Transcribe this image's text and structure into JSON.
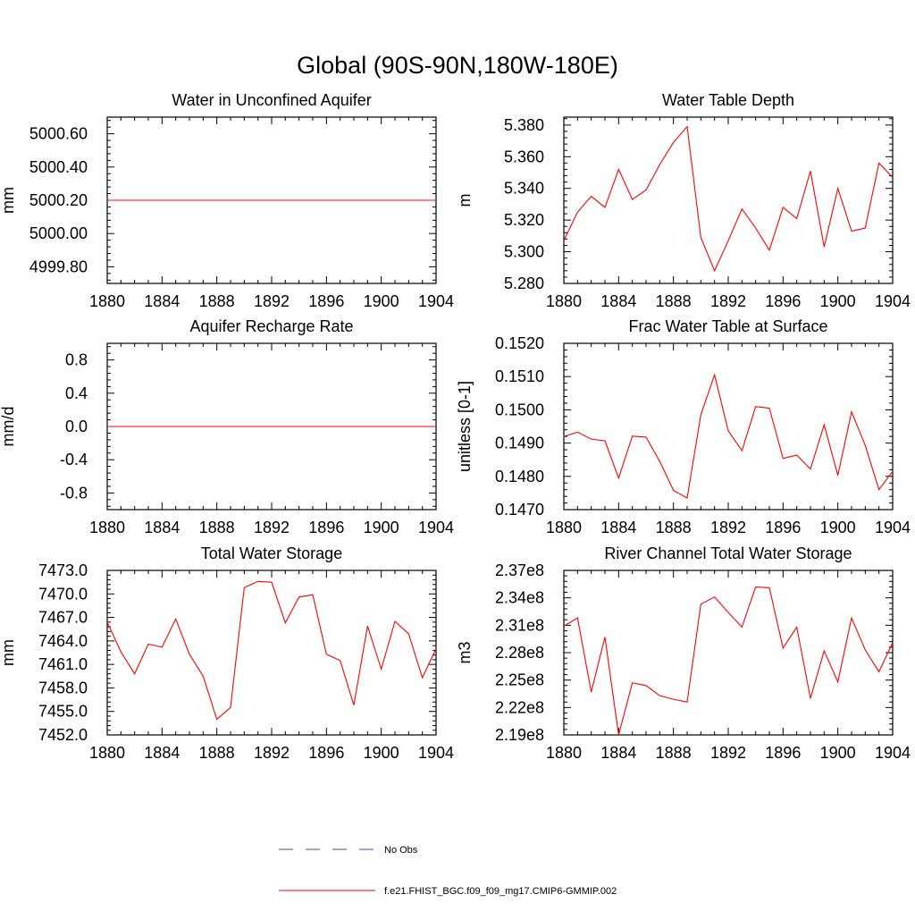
{
  "title": "Global (90S-90N,180W-180E)",
  "colors": {
    "series": "#ff0000",
    "obs": "#4a4aa8",
    "axis": "#000000"
  },
  "legend": {
    "entries": [
      {
        "label": "No Obs",
        "style": "dashed",
        "color": "#4a4aa8"
      },
      {
        "label": "f.e21.FHIST_BGC.f09_f09_mg17.CMIP6-GMMIP.002",
        "style": "solid",
        "color": "#ff0000"
      }
    ]
  },
  "chart_data": [
    {
      "type": "line",
      "title": "Water in Unconfined Aquifer",
      "ylabel": "mm",
      "xlabel": "",
      "xlim": [
        1880,
        1904
      ],
      "ylim": [
        4999.7,
        5000.7
      ],
      "xticks": [
        1880,
        1884,
        1888,
        1892,
        1896,
        1900,
        1904
      ],
      "xtick_labels": [
        "1880",
        "1884",
        "1888",
        "1892",
        "1896",
        "1900",
        "1904"
      ],
      "yticks": [
        4999.8,
        5000.0,
        5000.2,
        5000.4,
        5000.6
      ],
      "ytick_labels": [
        "4999.80",
        "5000.00",
        "5000.20",
        "5000.40",
        "5000.60"
      ],
      "series": [
        {
          "name": "f.e21.FHIST_BGC.f09_f09_mg17.CMIP6-GMMIP.002",
          "x": [
            1880,
            1881,
            1882,
            1883,
            1884,
            1885,
            1886,
            1887,
            1888,
            1889,
            1890,
            1891,
            1892,
            1893,
            1894,
            1895,
            1896,
            1897,
            1898,
            1899,
            1900,
            1901,
            1902,
            1903,
            1904
          ],
          "values": [
            5000.2,
            5000.2,
            5000.2,
            5000.2,
            5000.2,
            5000.2,
            5000.2,
            5000.2,
            5000.2,
            5000.2,
            5000.2,
            5000.2,
            5000.2,
            5000.2,
            5000.2,
            5000.2,
            5000.2,
            5000.2,
            5000.2,
            5000.2,
            5000.2,
            5000.2,
            5000.2,
            5000.2,
            5000.2
          ]
        }
      ]
    },
    {
      "type": "line",
      "title": "Water Table Depth",
      "ylabel": "m",
      "xlabel": "",
      "xlim": [
        1880,
        1904
      ],
      "ylim": [
        5.28,
        5.385
      ],
      "xticks": [
        1880,
        1884,
        1888,
        1892,
        1896,
        1900,
        1904
      ],
      "xtick_labels": [
        "1880",
        "1884",
        "1888",
        "1892",
        "1896",
        "1900",
        "1904"
      ],
      "yticks": [
        5.28,
        5.3,
        5.32,
        5.34,
        5.36,
        5.38
      ],
      "ytick_labels": [
        "5.280",
        "5.300",
        "5.320",
        "5.340",
        "5.360",
        "5.380"
      ],
      "series": [
        {
          "name": "f.e21.FHIST_BGC.f09_f09_mg17.CMIP6-GMMIP.002",
          "x": [
            1880,
            1881,
            1882,
            1883,
            1884,
            1885,
            1886,
            1887,
            1888,
            1889,
            1890,
            1891,
            1892,
            1893,
            1894,
            1895,
            1896,
            1897,
            1898,
            1899,
            1900,
            1901,
            1902,
            1903,
            1904
          ],
          "values": [
            5.307,
            5.325,
            5.335,
            5.328,
            5.352,
            5.333,
            5.339,
            5.355,
            5.369,
            5.379,
            5.309,
            5.288,
            5.307,
            5.327,
            5.315,
            5.301,
            5.328,
            5.321,
            5.351,
            5.303,
            5.34,
            5.313,
            5.315,
            5.356,
            5.347
          ]
        }
      ]
    },
    {
      "type": "line",
      "title": "Aquifer Recharge Rate",
      "ylabel": "mm/d",
      "xlabel": "",
      "xlim": [
        1880,
        1904
      ],
      "ylim": [
        -1.0,
        1.0
      ],
      "xticks": [
        1880,
        1884,
        1888,
        1892,
        1896,
        1900,
        1904
      ],
      "xtick_labels": [
        "1880",
        "1884",
        "1888",
        "1892",
        "1896",
        "1900",
        "1904"
      ],
      "yticks": [
        -0.8,
        -0.4,
        0.0,
        0.4,
        0.8
      ],
      "ytick_labels": [
        "-0.8",
        "-0.4",
        "0.0",
        "0.4",
        "0.8"
      ],
      "series": [
        {
          "name": "f.e21.FHIST_BGC.f09_f09_mg17.CMIP6-GMMIP.002",
          "x": [
            1880,
            1881,
            1882,
            1883,
            1884,
            1885,
            1886,
            1887,
            1888,
            1889,
            1890,
            1891,
            1892,
            1893,
            1894,
            1895,
            1896,
            1897,
            1898,
            1899,
            1900,
            1901,
            1902,
            1903,
            1904
          ],
          "values": [
            0,
            0,
            0,
            0,
            0,
            0,
            0,
            0,
            0,
            0,
            0,
            0,
            0,
            0,
            0,
            0,
            0,
            0,
            0,
            0,
            0,
            0,
            0,
            0,
            0
          ]
        }
      ]
    },
    {
      "type": "line",
      "title": "Frac Water Table at Surface",
      "ylabel": "unitless [0-1]",
      "xlabel": "",
      "xlim": [
        1880,
        1904
      ],
      "ylim": [
        0.147,
        0.152
      ],
      "xticks": [
        1880,
        1884,
        1888,
        1892,
        1896,
        1900,
        1904
      ],
      "xtick_labels": [
        "1880",
        "1884",
        "1888",
        "1892",
        "1896",
        "1900",
        "1904"
      ],
      "yticks": [
        0.147,
        0.148,
        0.149,
        0.15,
        0.151,
        0.152
      ],
      "ytick_labels": [
        "0.1470",
        "0.1480",
        "0.1490",
        "0.1500",
        "0.1510",
        "0.1520"
      ],
      "series": [
        {
          "name": "f.e21.FHIST_BGC.f09_f09_mg17.CMIP6-GMMIP.002",
          "x": [
            1880,
            1881,
            1882,
            1883,
            1884,
            1885,
            1886,
            1887,
            1888,
            1889,
            1890,
            1891,
            1892,
            1893,
            1894,
            1895,
            1896,
            1897,
            1898,
            1899,
            1900,
            1901,
            1902,
            1903,
            1904
          ],
          "values": [
            0.1492,
            0.14933,
            0.14912,
            0.14907,
            0.14795,
            0.14921,
            0.14918,
            0.14845,
            0.14758,
            0.14735,
            0.14985,
            0.15105,
            0.14937,
            0.14877,
            0.1501,
            0.15005,
            0.14854,
            0.14864,
            0.14822,
            0.14955,
            0.14803,
            0.14994,
            0.14893,
            0.1476,
            0.14815
          ]
        }
      ]
    },
    {
      "type": "line",
      "title": "Total Water Storage",
      "ylabel": "mm",
      "xlabel": "",
      "xlim": [
        1880,
        1904
      ],
      "ylim": [
        7452.0,
        7473.0
      ],
      "xticks": [
        1880,
        1884,
        1888,
        1892,
        1896,
        1900,
        1904
      ],
      "xtick_labels": [
        "1880",
        "1884",
        "1888",
        "1892",
        "1896",
        "1900",
        "1904"
      ],
      "yticks": [
        7452.0,
        7455.0,
        7458.0,
        7461.0,
        7464.0,
        7467.0,
        7470.0,
        7473.0
      ],
      "ytick_labels": [
        "7452.0",
        "7455.0",
        "7458.0",
        "7461.0",
        "7464.0",
        "7467.0",
        "7470.0",
        "7473.0"
      ],
      "series": [
        {
          "name": "f.e21.FHIST_BGC.f09_f09_mg17.CMIP6-GMMIP.002",
          "x": [
            1880,
            1881,
            1882,
            1883,
            1884,
            1885,
            1886,
            1887,
            1888,
            1889,
            1890,
            1891,
            1892,
            1893,
            1894,
            1895,
            1896,
            1897,
            1898,
            1899,
            1900,
            1901,
            1902,
            1903,
            1904
          ],
          "values": [
            7466.4,
            7462.6,
            7459.8,
            7463.6,
            7463.2,
            7466.8,
            7462.3,
            7459.5,
            7454.0,
            7455.5,
            7470.8,
            7471.6,
            7471.5,
            7466.3,
            7469.6,
            7469.9,
            7462.3,
            7461.5,
            7455.8,
            7465.9,
            7460.4,
            7466.5,
            7464.9,
            7459.3,
            7463.0
          ]
        }
      ]
    },
    {
      "type": "line",
      "title": "River Channel Total Water Storage",
      "ylabel": "m3",
      "xlabel": "",
      "xlim": [
        1880,
        1904
      ],
      "ylim": [
        219000000.0,
        237000000.0
      ],
      "xticks": [
        1880,
        1884,
        1888,
        1892,
        1896,
        1900,
        1904
      ],
      "xtick_labels": [
        "1880",
        "1884",
        "1888",
        "1892",
        "1896",
        "1900",
        "1904"
      ],
      "yticks": [
        219000000.0,
        222000000.0,
        225000000.0,
        228000000.0,
        231000000.0,
        234000000.0,
        237000000.0
      ],
      "ytick_labels": [
        "2.19e8",
        "2.22e8",
        "2.25e8",
        "2.28e8",
        "2.31e8",
        "2.34e8",
        "2.37e8"
      ],
      "series": [
        {
          "name": "f.e21.FHIST_BGC.f09_f09_mg17.CMIP6-GMMIP.002",
          "x": [
            1880,
            1881,
            1882,
            1883,
            1884,
            1885,
            1886,
            1887,
            1888,
            1889,
            1890,
            1891,
            1892,
            1893,
            1894,
            1895,
            1896,
            1897,
            1898,
            1899,
            1900,
            1901,
            1902,
            1903,
            1904
          ],
          "values": [
            230900000.0,
            231800000.0,
            223700000.0,
            229700000.0,
            219000000.0,
            224700000.0,
            224400000.0,
            223300000.0,
            222900000.0,
            222600000.0,
            233300000.0,
            234100000.0,
            232400000.0,
            230800000.0,
            235200000.0,
            235100000.0,
            228500000.0,
            230800000.0,
            223000000.0,
            228200000.0,
            224800000.0,
            231800000.0,
            228300000.0,
            225900000.0,
            229100000.0
          ]
        }
      ]
    }
  ]
}
